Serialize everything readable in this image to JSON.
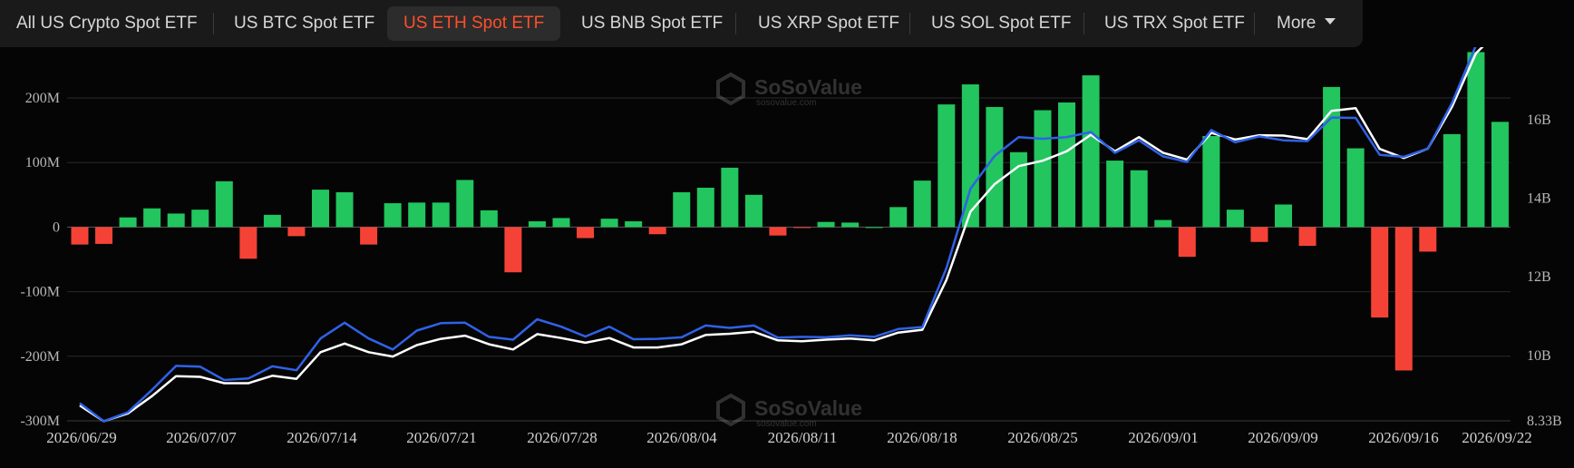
{
  "tabs": [
    {
      "label": "All US Crypto Spot ETF",
      "active": false
    },
    {
      "label": "US BTC Spot ETF",
      "active": false
    },
    {
      "label": "US ETH Spot ETF",
      "active": true
    },
    {
      "label": "US BNB Spot ETF",
      "active": false
    },
    {
      "label": "US XRP Spot ETF",
      "active": false
    },
    {
      "label": "US SOL Spot ETF",
      "active": false
    },
    {
      "label": "US TRX Spot ETF",
      "active": false
    }
  ],
  "more_label": "More",
  "watermark": {
    "brand": "SoSoValue",
    "url": "sosovalue.com"
  },
  "colors": {
    "positive": "#22c55e",
    "negative": "#f44336",
    "line_blue": "#2f62e8",
    "line_white": "#ffffff",
    "accent": "#ff4f2a"
  },
  "chart_data": {
    "type": "bar",
    "x_ticks": [
      "2026/06/29",
      "2026/07/07",
      "2026/07/14",
      "2026/07/21",
      "2026/07/28",
      "2026/08/04",
      "2026/08/11",
      "2026/08/18",
      "2026/08/25",
      "2026/09/01",
      "2026/09/09",
      "2026/09/16",
      "2026/09/22"
    ],
    "left_axis": {
      "ticks": [
        "200M",
        "100M",
        "0",
        "-100M",
        "-200M",
        "-300M"
      ],
      "ylim": [
        -300,
        300
      ],
      "unit": "M"
    },
    "right_axis": {
      "ticks": [
        "16B",
        "14B",
        "12B",
        "10B",
        "8.33B"
      ],
      "ylim": [
        8.33,
        17.9
      ],
      "unit": "B"
    },
    "grid": true,
    "series": [
      {
        "kind": "bar",
        "values": [
          -27,
          -26,
          15,
          29,
          21,
          27,
          71,
          -49,
          19,
          -14,
          58,
          54,
          -27,
          37,
          38,
          38,
          73,
          26,
          -70,
          9,
          14,
          -17,
          13,
          9,
          -11,
          54,
          61,
          92,
          50,
          -13,
          -1,
          8,
          7,
          0,
          31,
          72,
          190,
          221,
          186,
          116,
          181,
          193,
          235,
          103,
          88,
          11,
          -46,
          141,
          27,
          -23,
          35,
          -29,
          217,
          122,
          -140,
          -222,
          -38,
          144,
          271,
          163
        ]
      },
      {
        "kind": "line",
        "color": "blue",
        "values": [
          8.78,
          8.32,
          8.55,
          9.12,
          9.73,
          9.71,
          9.37,
          9.41,
          9.72,
          9.62,
          10.43,
          10.83,
          10.43,
          10.15,
          10.63,
          10.82,
          10.83,
          10.47,
          10.4,
          10.92,
          10.73,
          10.48,
          10.73,
          10.41,
          10.42,
          10.46,
          10.76,
          10.7,
          10.76,
          10.45,
          10.47,
          10.46,
          10.51,
          10.47,
          10.67,
          10.72,
          12.22,
          14.24,
          15.08,
          15.56,
          15.52,
          15.56,
          15.69,
          15.16,
          15.48,
          15.07,
          14.93,
          15.74,
          15.43,
          15.58,
          15.48,
          15.46,
          16.06,
          16.05,
          15.11,
          15.06,
          15.27,
          16.43,
          17.9,
          18.4
        ]
      },
      {
        "kind": "line",
        "color": "white",
        "values": [
          8.72,
          8.32,
          8.52,
          8.96,
          9.47,
          9.45,
          9.29,
          9.29,
          9.48,
          9.4,
          10.08,
          10.3,
          10.08,
          9.97,
          10.26,
          10.42,
          10.5,
          10.28,
          10.15,
          10.54,
          10.44,
          10.32,
          10.44,
          10.2,
          10.2,
          10.28,
          10.52,
          10.55,
          10.6,
          10.38,
          10.36,
          10.4,
          10.43,
          10.38,
          10.58,
          10.65,
          11.92,
          13.66,
          14.36,
          14.82,
          14.96,
          15.2,
          15.62,
          15.2,
          15.56,
          15.16,
          14.99,
          15.67,
          15.5,
          15.61,
          15.6,
          15.51,
          16.23,
          16.3,
          15.26,
          15.03,
          15.27,
          16.33,
          17.7,
          18.3
        ]
      }
    ]
  }
}
